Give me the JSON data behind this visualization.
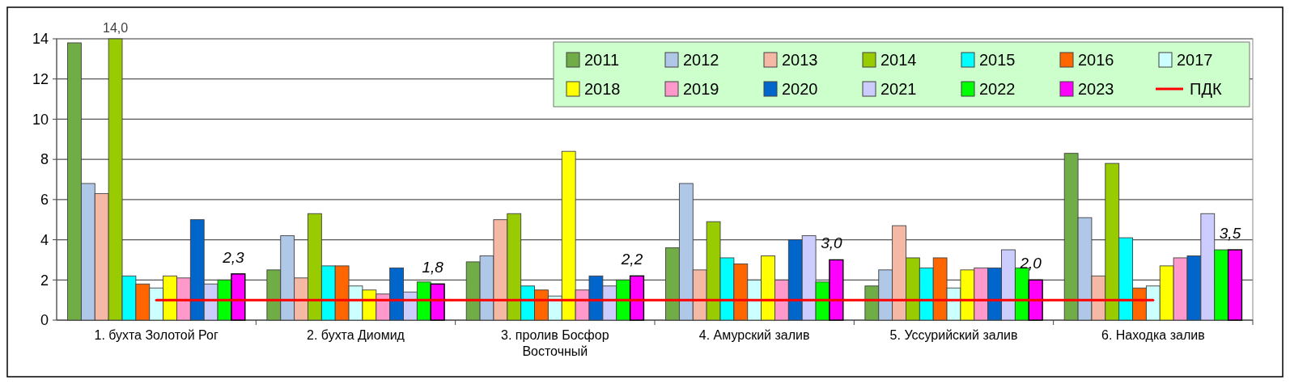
{
  "chart_data": {
    "type": "bar",
    "categories": [
      "1. бухта Золотой Рог",
      "2. бухта Диомид",
      "3. пролив Босфор Восточный",
      "4. Амурский залив",
      "5. Уссурийский залив",
      "6. Находка залив"
    ],
    "ylim": [
      0,
      14
    ],
    "yticks": [
      0,
      2,
      4,
      6,
      8,
      10,
      12,
      14
    ],
    "grid": "y",
    "legend": "top right",
    "series": [
      {
        "name": "2011",
        "color": "#70ad47",
        "values": [
          13.8,
          2.5,
          2.9,
          3.6,
          1.7,
          8.3
        ]
      },
      {
        "name": "2012",
        "color": "#b0c8e8",
        "values": [
          6.8,
          4.2,
          3.2,
          6.8,
          2.5,
          5.1
        ]
      },
      {
        "name": "2013",
        "color": "#f4b8a4",
        "values": [
          6.3,
          2.1,
          5.0,
          2.5,
          4.7,
          2.2
        ]
      },
      {
        "name": "2014",
        "color": "#99cc00",
        "values": [
          14.0,
          5.3,
          5.3,
          4.9,
          3.1,
          7.8
        ],
        "value_labels": [
          "14,0",
          null,
          null,
          null,
          null,
          null
        ]
      },
      {
        "name": "2015",
        "color": "#00ffff",
        "values": [
          2.2,
          2.7,
          1.7,
          3.1,
          2.6,
          4.1
        ]
      },
      {
        "name": "2016",
        "color": "#ff6600",
        "values": [
          1.8,
          2.7,
          1.5,
          2.8,
          3.1,
          1.6
        ]
      },
      {
        "name": "2017",
        "color": "#ccffff",
        "values": [
          1.6,
          1.7,
          1.2,
          2.0,
          1.6,
          1.7
        ]
      },
      {
        "name": "2018",
        "color": "#ffff00",
        "values": [
          2.2,
          1.5,
          8.4,
          3.2,
          2.5,
          2.7
        ]
      },
      {
        "name": "2019",
        "color": "#ff99cc",
        "values": [
          2.1,
          1.3,
          1.5,
          2.0,
          2.6,
          3.1
        ]
      },
      {
        "name": "2020",
        "color": "#0066cc",
        "values": [
          5.0,
          2.6,
          2.2,
          4.0,
          2.6,
          3.2
        ]
      },
      {
        "name": "2021",
        "color": "#ccccff",
        "values": [
          1.8,
          1.4,
          1.7,
          4.2,
          3.5,
          5.3
        ]
      },
      {
        "name": "2022",
        "color": "#00ff00",
        "values": [
          2.0,
          1.9,
          2.0,
          1.9,
          2.6,
          3.5
        ]
      },
      {
        "name": "2023",
        "color": "#ff00ff",
        "values": [
          2.3,
          1.8,
          2.2,
          3.0,
          2.0,
          3.5
        ],
        "value_labels": [
          "2,3",
          "1,8",
          "2,2",
          "3,0",
          "2,0",
          "3,5"
        ]
      },
      {
        "name": "ПДК",
        "type": "line",
        "color": "#ff0000",
        "values": [
          1,
          1,
          1,
          1,
          1,
          1
        ]
      }
    ]
  }
}
